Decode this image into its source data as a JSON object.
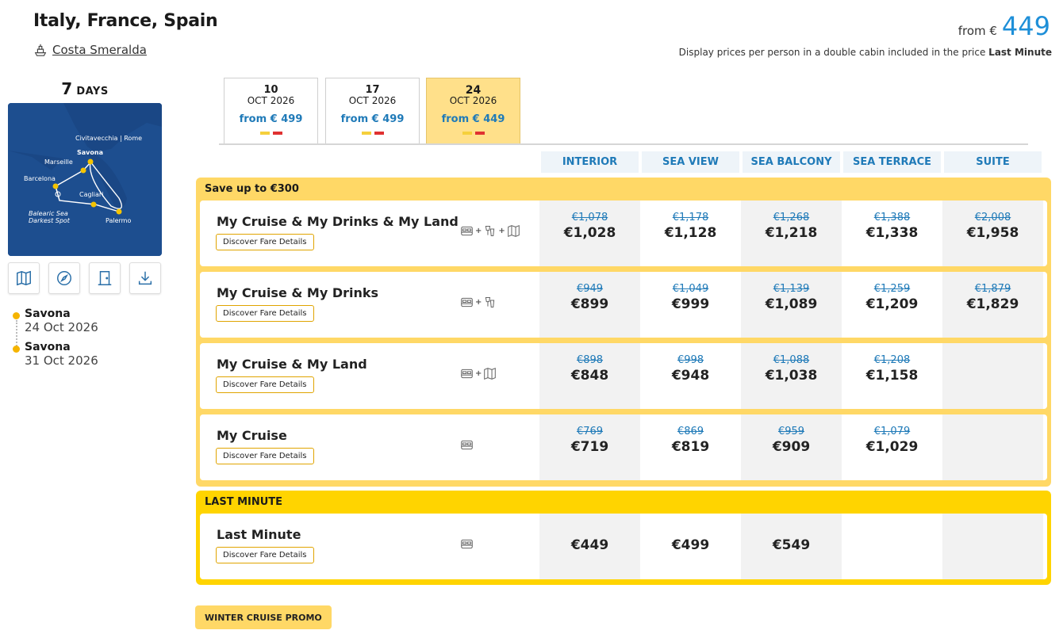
{
  "header": {
    "title": "Italy, France, Spain",
    "ship": "Costa Smeralda",
    "from_label": "from €",
    "from_value": "449",
    "disclaimer_main": "Display prices per person in a double cabin included in the price",
    "disclaimer_bold": "Last Minute"
  },
  "duration": {
    "number": "7",
    "label": "DAYS"
  },
  "map_labels": {
    "civitavecchia": "Civitavecchia | Rome",
    "savona": "Savona",
    "marseille": "Marseille",
    "barcelona": "Barcelona",
    "cagliari": "Cagliari",
    "balearic": "Balearic Sea",
    "darkest": "Darkest Spot",
    "palermo": "Palermo"
  },
  "tools": [
    "map-icon",
    "compass-icon",
    "door-icon",
    "download-icon"
  ],
  "itinerary": [
    {
      "port": "Savona",
      "date": "24 Oct 2026"
    },
    {
      "port": "Savona",
      "date": "31 Oct 2026"
    }
  ],
  "date_tabs": [
    {
      "day": "10",
      "month": "OCT 2026",
      "price": "from € 499",
      "active": false
    },
    {
      "day": "17",
      "month": "OCT 2026",
      "price": "from € 499",
      "active": false
    },
    {
      "day": "24",
      "month": "OCT 2026",
      "price": "from € 449",
      "active": true
    }
  ],
  "cabins": [
    "INTERIOR",
    "SEA VIEW",
    "SEA BALCONY",
    "SEA TERRACE",
    "SUITE"
  ],
  "save_group": {
    "title": "Save up to €300",
    "fares": [
      {
        "name": "My Cruise & My Drinks & My Land",
        "button": "Discover Fare Details",
        "icons": [
          "bed-icon",
          "drinks-icon",
          "excursion-map-icon"
        ],
        "prices": [
          {
            "old": "€1,078",
            "new": "€1,028"
          },
          {
            "old": "€1,178",
            "new": "€1,128"
          },
          {
            "old": "€1,268",
            "new": "€1,218"
          },
          {
            "old": "€1,388",
            "new": "€1,338"
          },
          {
            "old": "€2,008",
            "new": "€1,958"
          }
        ]
      },
      {
        "name": "My Cruise & My Drinks",
        "button": "Discover Fare Details",
        "icons": [
          "bed-icon",
          "drinks-icon"
        ],
        "prices": [
          {
            "old": "€949",
            "new": "€899"
          },
          {
            "old": "€1,049",
            "new": "€999"
          },
          {
            "old": "€1,139",
            "new": "€1,089"
          },
          {
            "old": "€1,259",
            "new": "€1,209"
          },
          {
            "old": "€1,879",
            "new": "€1,829"
          }
        ]
      },
      {
        "name": "My Cruise & My Land",
        "button": "Discover Fare Details",
        "icons": [
          "bed-icon",
          "excursion-map-icon"
        ],
        "prices": [
          {
            "old": "€898",
            "new": "€848"
          },
          {
            "old": "€998",
            "new": "€948"
          },
          {
            "old": "€1,088",
            "new": "€1,038"
          },
          {
            "old": "€1,208",
            "new": "€1,158"
          },
          {
            "old": "",
            "new": ""
          }
        ]
      },
      {
        "name": "My Cruise",
        "button": "Discover Fare Details",
        "icons": [
          "bed-icon"
        ],
        "prices": [
          {
            "old": "€769",
            "new": "€719"
          },
          {
            "old": "€869",
            "new": "€819"
          },
          {
            "old": "€959",
            "new": "€909"
          },
          {
            "old": "€1,079",
            "new": "€1,029"
          },
          {
            "old": "",
            "new": ""
          }
        ]
      }
    ]
  },
  "lm_group": {
    "title": "LAST MINUTE",
    "fares": [
      {
        "name": "Last Minute",
        "button": "Discover Fare Details",
        "icons": [
          "bed-icon"
        ],
        "prices": [
          {
            "old": "",
            "new": "€449"
          },
          {
            "old": "",
            "new": "€499"
          },
          {
            "old": "",
            "new": "€549"
          },
          {
            "old": "",
            "new": ""
          },
          {
            "old": "",
            "new": ""
          }
        ]
      }
    ]
  },
  "promo": "WINTER CRUISE PROMO",
  "colors": {
    "accent_blue": "#1e8fd8",
    "yellow": "#ffd866",
    "last_minute_yellow": "#ffd400"
  }
}
